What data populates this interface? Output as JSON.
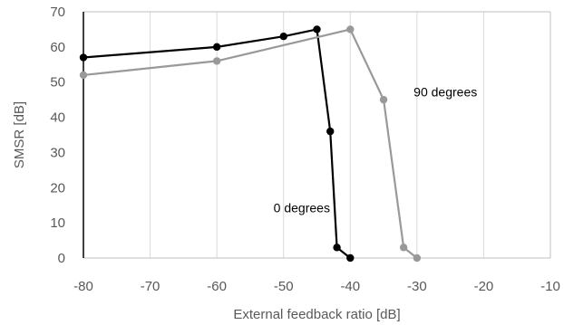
{
  "chart_data": {
    "type": "line",
    "title": "",
    "xlabel": "External feedback ratio [dB]",
    "ylabel": "SMSR [dB]",
    "xlim": [
      -80,
      -10
    ],
    "ylim": [
      0,
      70
    ],
    "x_ticks": [
      -80,
      -70,
      -60,
      -50,
      -40,
      -30,
      -20,
      -10
    ],
    "y_ticks": [
      0,
      10,
      20,
      30,
      40,
      50,
      60,
      70
    ],
    "grid": "vertical",
    "legend": "none",
    "series": [
      {
        "color": "#000000",
        "points": [
          {
            "x": -80,
            "y": 57
          },
          {
            "x": -60,
            "y": 60
          },
          {
            "x": -50,
            "y": 63
          },
          {
            "x": -45,
            "y": 65
          },
          {
            "x": -43,
            "y": 36
          },
          {
            "x": -42,
            "y": 3
          },
          {
            "x": -40,
            "y": 0
          }
        ]
      },
      {
        "color": "#999999",
        "points": [
          {
            "x": -80,
            "y": 52
          },
          {
            "x": -60,
            "y": 56
          },
          {
            "x": -40,
            "y": 65
          },
          {
            "x": -35,
            "y": 45
          },
          {
            "x": -32,
            "y": 3
          },
          {
            "x": -30,
            "y": 0
          }
        ]
      }
    ],
    "annotations": [
      {
        "text": "0 degrees",
        "x": -51.5,
        "y": 13
      },
      {
        "text": "90 degrees",
        "x": -30.5,
        "y": 46
      }
    ]
  }
}
